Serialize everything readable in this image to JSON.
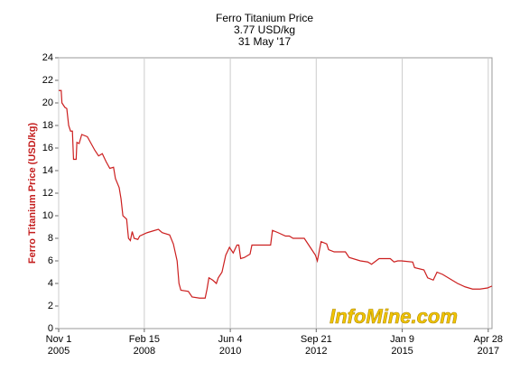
{
  "chart_data": {
    "type": "line",
    "title": "Ferro Titanium Price",
    "subtitle": "3.77 USD/kg",
    "date_label": "31 May '17",
    "y_label": "Ferro Titanium Price (USD/kg)",
    "watermark": "InfoMine.com",
    "grid": "x",
    "xlim": [
      2005.833,
      2017.42
    ],
    "xticks": [
      {
        "value": 2005.833,
        "label": "Nov 1\n2005"
      },
      {
        "value": 2008.123,
        "label": "Feb 15\n2008"
      },
      {
        "value": 2010.422,
        "label": "Jun 4\n2010"
      },
      {
        "value": 2012.72,
        "label": "Sep 21\n2012"
      },
      {
        "value": 2015.02,
        "label": "Jan 9\n2015"
      },
      {
        "value": 2017.32,
        "label": "Apr 28\n2017"
      }
    ],
    "ylim": [
      0,
      24
    ],
    "yticks": [
      0,
      2,
      4,
      6,
      8,
      10,
      12,
      14,
      16,
      18,
      20,
      22,
      24
    ],
    "series": [
      {
        "name": "Ferro Titanium Price",
        "color": "#cc1f1f",
        "x": [
          2005.833,
          2005.9,
          2005.92,
          2006.0,
          2006.05,
          2006.1,
          2006.15,
          2006.2,
          2006.23,
          2006.3,
          2006.32,
          2006.38,
          2006.45,
          2006.6,
          2006.7,
          2006.8,
          2006.9,
          2007.0,
          2007.1,
          2007.2,
          2007.3,
          2007.35,
          2007.45,
          2007.5,
          2007.55,
          2007.65,
          2007.7,
          2007.75,
          2007.8,
          2007.85,
          2007.95,
          2008.0,
          2008.2,
          2008.5,
          2008.6,
          2008.8,
          2008.9,
          2009.0,
          2009.05,
          2009.1,
          2009.3,
          2009.4,
          2009.6,
          2009.75,
          2009.8,
          2009.85,
          2009.95,
          2010.05,
          2010.1,
          2010.2,
          2010.3,
          2010.4,
          2010.5,
          2010.6,
          2010.65,
          2010.7,
          2010.8,
          2010.95,
          2011.0,
          2011.5,
          2011.55,
          2011.7,
          2011.9,
          2012.0,
          2012.1,
          2012.4,
          2012.5,
          2012.6,
          2012.7,
          2012.75,
          2012.85,
          2013.0,
          2013.05,
          2013.2,
          2013.5,
          2013.6,
          2013.9,
          2014.1,
          2014.2,
          2014.4,
          2014.7,
          2014.8,
          2014.9,
          2015.0,
          2015.3,
          2015.35,
          2015.6,
          2015.7,
          2015.85,
          2015.95,
          2016.1,
          2016.3,
          2016.5,
          2016.7,
          2016.9,
          2017.1,
          2017.3,
          2017.42
        ],
        "values": [
          21.1,
          21.1,
          20.0,
          19.6,
          19.5,
          18.0,
          17.5,
          17.5,
          15.0,
          15.0,
          16.5,
          16.4,
          17.2,
          17.0,
          16.4,
          15.8,
          15.3,
          15.5,
          14.8,
          14.2,
          14.3,
          13.3,
          12.5,
          11.5,
          10.0,
          9.7,
          8.0,
          7.8,
          8.6,
          8.0,
          7.9,
          8.2,
          8.5,
          8.8,
          8.5,
          8.3,
          7.5,
          6.0,
          4.0,
          3.4,
          3.3,
          2.8,
          2.7,
          2.7,
          3.5,
          4.5,
          4.3,
          4.0,
          4.5,
          5.0,
          6.5,
          7.2,
          6.7,
          7.4,
          7.4,
          6.2,
          6.3,
          6.6,
          7.4,
          7.4,
          8.7,
          8.5,
          8.2,
          8.2,
          8.0,
          8.0,
          7.5,
          7.0,
          6.5,
          6.0,
          7.7,
          7.5,
          7.0,
          6.8,
          6.8,
          6.3,
          6.0,
          5.9,
          5.7,
          6.2,
          6.2,
          5.9,
          6.0,
          6.0,
          5.9,
          5.4,
          5.2,
          4.5,
          4.3,
          5.0,
          4.8,
          4.4,
          4.0,
          3.7,
          3.5,
          3.5,
          3.6,
          3.77
        ]
      }
    ]
  }
}
